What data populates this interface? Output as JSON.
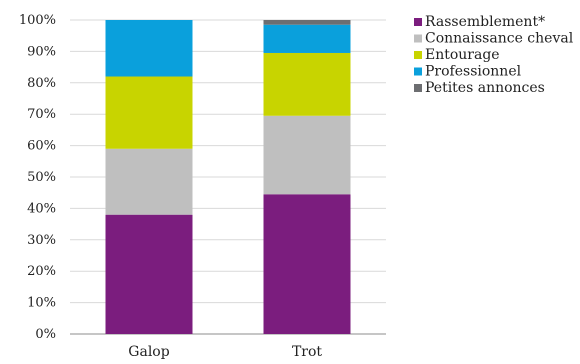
{
  "chart_data": {
    "type": "bar",
    "stacked": true,
    "categories": [
      "Galop",
      "Trot"
    ],
    "series": [
      {
        "name": "Rassemblement*",
        "color": "#7b1d7e",
        "values": [
          38,
          44.5
        ]
      },
      {
        "name": "Connaissance cheval",
        "color": "#bfbfbf",
        "values": [
          21,
          25
        ]
      },
      {
        "name": "Entourage",
        "color": "#c8d400",
        "values": [
          23,
          20
        ]
      },
      {
        "name": "Professionnel",
        "color": "#0aa0dc",
        "values": [
          18,
          9
        ]
      },
      {
        "name": "Petites annonces",
        "color": "#6d6e71",
        "values": [
          0,
          1.5
        ]
      }
    ],
    "ylim": [
      0,
      100
    ],
    "yticks": [
      "0%",
      "10%",
      "20%",
      "30%",
      "40%",
      "50%",
      "60%",
      "70%",
      "80%",
      "90%",
      "100%"
    ],
    "grid": true,
    "legend": "right"
  }
}
